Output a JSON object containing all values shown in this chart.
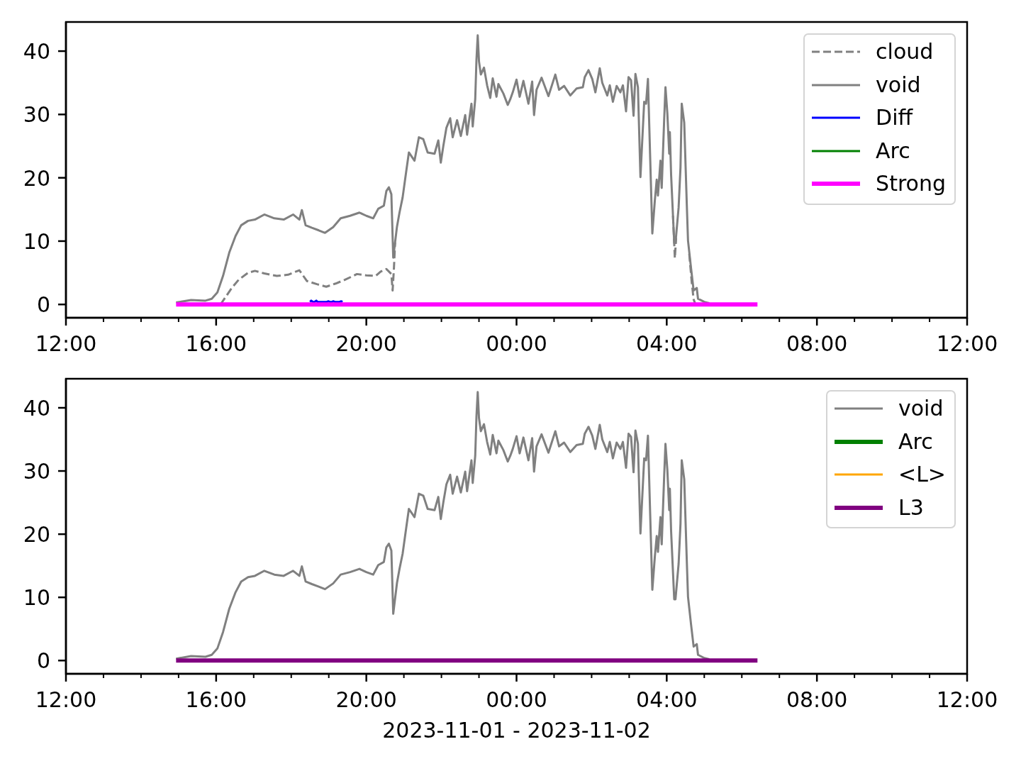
{
  "chart_data": [
    {
      "type": "line",
      "xlim": [
        "2023-11-01T12:00",
        "2023-11-02T12:00"
      ],
      "xticks": [
        {
          "value": "2023-11-01T12:00",
          "label": "12:00"
        },
        {
          "value": "2023-11-01T13:00",
          "label": null
        },
        {
          "value": "2023-11-01T14:00",
          "label": null
        },
        {
          "value": "2023-11-01T15:00",
          "label": null
        },
        {
          "value": "2023-11-01T16:00",
          "label": "16:00"
        },
        {
          "value": "2023-11-01T17:00",
          "label": null
        },
        {
          "value": "2023-11-01T18:00",
          "label": null
        },
        {
          "value": "2023-11-01T19:00",
          "label": null
        },
        {
          "value": "2023-11-01T20:00",
          "label": "20:00"
        },
        {
          "value": "2023-11-01T21:00",
          "label": null
        },
        {
          "value": "2023-11-01T22:00",
          "label": null
        },
        {
          "value": "2023-11-01T23:00",
          "label": null
        },
        {
          "value": "2023-11-02T00:00",
          "label": "00:00"
        },
        {
          "value": "2023-11-02T01:00",
          "label": null
        },
        {
          "value": "2023-11-02T02:00",
          "label": null
        },
        {
          "value": "2023-11-02T03:00",
          "label": null
        },
        {
          "value": "2023-11-02T04:00",
          "label": "04:00"
        },
        {
          "value": "2023-11-02T05:00",
          "label": null
        },
        {
          "value": "2023-11-02T06:00",
          "label": null
        },
        {
          "value": "2023-11-02T07:00",
          "label": null
        },
        {
          "value": "2023-11-02T08:00",
          "label": "08:00"
        },
        {
          "value": "2023-11-02T09:00",
          "label": null
        },
        {
          "value": "2023-11-02T10:00",
          "label": null
        },
        {
          "value": "2023-11-02T11:00",
          "label": null
        },
        {
          "value": "2023-11-02T12:00",
          "label": "12:00"
        }
      ],
      "ylim": [
        -2.1,
        44.6
      ],
      "yticks": [
        0,
        10,
        20,
        30,
        40
      ],
      "legend": "top right",
      "marker": "none",
      "series": [
        {
          "name": "cloud",
          "color": "#808080",
          "line_style": "dashed",
          "x": [
            "2023-11-01T16:07",
            "2023-11-01T16:25",
            "2023-11-01T16:36",
            "2023-11-01T16:51",
            "2023-11-01T17:02",
            "2023-11-01T17:17",
            "2023-11-01T17:37",
            "2023-11-01T17:55",
            "2023-11-01T18:13",
            "2023-11-01T18:25",
            "2023-11-01T18:41",
            "2023-11-01T18:56",
            "2023-11-01T19:11",
            "2023-11-01T19:26",
            "2023-11-01T19:45",
            "2023-11-01T20:00",
            "2023-11-01T20:15",
            "2023-11-01T20:23",
            "2023-11-01T20:32",
            "2023-11-01T20:40",
            "2023-11-01T20:42",
            "2023-11-01T20:44",
            "2023-11-01T20:46",
            "2023-11-01T21:00",
            "2023-11-02T04:10",
            "2023-11-02T04:13",
            "2023-11-02T04:15",
            "2023-11-02T04:25",
            "2023-11-02T04:36",
            "2023-11-02T04:40",
            "2023-11-02T04:43",
            "2023-11-02T04:46"
          ],
          "values": [
            0,
            2.6,
            3.9,
            5.0,
            5.3,
            4.9,
            4.5,
            4.7,
            5.4,
            3.7,
            3.2,
            2.8,
            3.3,
            3.9,
            4.8,
            4.6,
            4.5,
            5.2,
            5.6,
            4.8,
            2.2,
            5.5,
            9.8,
            null,
            14.0,
            7.3,
            10.5,
            null,
            8.0,
            3.5,
            0.8,
            0
          ]
        },
        {
          "name": "void",
          "color": "#808080",
          "x": [
            "2023-11-01T14:56",
            "2023-11-01T15:20",
            "2023-11-01T15:43",
            "2023-11-01T15:53",
            "2023-11-01T16:02",
            "2023-11-01T16:11",
            "2023-11-01T16:21",
            "2023-11-01T16:31",
            "2023-11-01T16:40",
            "2023-11-01T16:51",
            "2023-11-01T17:02",
            "2023-11-01T17:17",
            "2023-11-01T17:33",
            "2023-11-01T17:48",
            "2023-11-01T18:03",
            "2023-11-01T18:13",
            "2023-11-01T18:17",
            "2023-11-01T18:23",
            "2023-11-01T18:33",
            "2023-11-01T18:44",
            "2023-11-01T18:54",
            "2023-11-01T19:07",
            "2023-11-01T19:19",
            "2023-11-01T19:34",
            "2023-11-01T19:49",
            "2023-11-01T20:00",
            "2023-11-01T20:11",
            "2023-11-01T20:19",
            "2023-11-01T20:28",
            "2023-11-01T20:32",
            "2023-11-01T20:36",
            "2023-11-01T20:40",
            "2023-11-01T20:43",
            "2023-11-01T20:49",
            "2023-11-01T20:53",
            "2023-11-01T20:58",
            "2023-11-01T21:04",
            "2023-11-01T21:08",
            "2023-11-01T21:17",
            "2023-11-01T21:24",
            "2023-11-01T21:31",
            "2023-11-01T21:38",
            "2023-11-01T21:49",
            "2023-11-01T21:55",
            "2023-11-01T21:59",
            "2023-11-01T22:03",
            "2023-11-01T22:08",
            "2023-11-01T22:14",
            "2023-11-01T22:18",
            "2023-11-01T22:25",
            "2023-11-01T22:31",
            "2023-11-01T22:38",
            "2023-11-01T22:41",
            "2023-11-01T22:48",
            "2023-11-01T22:50",
            "2023-11-01T22:54",
            "2023-11-01T22:56",
            "2023-11-01T22:58",
            "2023-11-01T23:00",
            "2023-11-01T23:03",
            "2023-11-01T23:08",
            "2023-11-01T23:13",
            "2023-11-01T23:18",
            "2023-11-01T23:22",
            "2023-11-01T23:28",
            "2023-11-01T23:31",
            "2023-11-01T23:39",
            "2023-11-01T23:46",
            "2023-11-01T23:50",
            "2023-11-01T23:54",
            "2023-11-02T00:00",
            "2023-11-02T00:05",
            "2023-11-02T00:11",
            "2023-11-02T00:19",
            "2023-11-02T00:25",
            "2023-11-02T00:28",
            "2023-11-02T00:32",
            "2023-11-02T00:40",
            "2023-11-02T00:51",
            "2023-11-02T01:02",
            "2023-11-02T01:08",
            "2023-11-02T01:16",
            "2023-11-02T01:26",
            "2023-11-02T01:36",
            "2023-11-02T01:46",
            "2023-11-02T01:49",
            "2023-11-02T01:55",
            "2023-11-02T02:01",
            "2023-11-02T02:06",
            "2023-11-02T02:13",
            "2023-11-02T02:17",
            "2023-11-02T02:25",
            "2023-11-02T02:29",
            "2023-11-02T02:34",
            "2023-11-02T02:40",
            "2023-11-02T02:46",
            "2023-11-02T02:50",
            "2023-11-02T02:55",
            "2023-11-02T02:59",
            "2023-11-02T03:03",
            "2023-11-02T03:07",
            "2023-11-02T03:10",
            "2023-11-02T03:14",
            "2023-11-02T03:18",
            "2023-11-02T03:24",
            "2023-11-02T03:27",
            "2023-11-02T03:30",
            "2023-11-02T03:37",
            "2023-11-02T03:41",
            "2023-11-02T03:44",
            "2023-11-02T03:46",
            "2023-11-02T03:50",
            "2023-11-02T03:52",
            "2023-11-02T03:56",
            "2023-11-02T03:58",
            "2023-11-02T04:01",
            "2023-11-02T04:04",
            "2023-11-02T04:05",
            "2023-11-02T04:07",
            "2023-11-02T04:12",
            "2023-11-02T04:14",
            "2023-11-02T04:19",
            "2023-11-02T04:22",
            "2023-11-02T04:24",
            "2023-11-02T04:28",
            "2023-11-02T04:32",
            "2023-11-02T04:34",
            "2023-11-02T04:39",
            "2023-11-02T04:43",
            "2023-11-02T04:48",
            "2023-11-02T04:50",
            "2023-11-02T05:00",
            "2023-11-02T05:08"
          ],
          "values": [
            0.3,
            0.7,
            0.6,
            0.9,
            1.9,
            4.5,
            8.2,
            10.8,
            12.5,
            13.2,
            13.4,
            14.2,
            13.6,
            13.4,
            14.2,
            13.4,
            14.9,
            12.5,
            12.1,
            11.7,
            11.3,
            12.2,
            13.6,
            14.0,
            14.5,
            14.0,
            13.6,
            15.1,
            15.6,
            17.9,
            18.5,
            17.4,
            7.4,
            12.3,
            14.5,
            16.9,
            21.2,
            24.0,
            22.7,
            26.4,
            26.1,
            24.0,
            23.8,
            25.9,
            22.4,
            25.0,
            27.9,
            29.4,
            26.4,
            29.1,
            26.6,
            29.9,
            26.8,
            31.7,
            28.1,
            32.4,
            38.7,
            42.5,
            38.4,
            36.3,
            37.4,
            34.6,
            32.6,
            35.7,
            32.8,
            34.8,
            33.3,
            31.5,
            32.4,
            33.5,
            35.5,
            32.8,
            35.3,
            31.7,
            35.2,
            29.9,
            33.9,
            35.8,
            32.9,
            36.3,
            33.9,
            34.5,
            33.0,
            34.1,
            34.3,
            35.9,
            37.0,
            35.6,
            33.5,
            37.3,
            35.0,
            33.0,
            34.6,
            32.0,
            34.5,
            33.5,
            34.6,
            30.5,
            35.9,
            35.4,
            29.8,
            36.4,
            34.3,
            20.1,
            32.0,
            31.7,
            35.6,
            11.2,
            16.4,
            19.7,
            17.2,
            22.7,
            18.4,
            29.4,
            34.3,
            30.2,
            23.8,
            27.2,
            20.5,
            9.7,
            9.7,
            15.3,
            21.6,
            31.7,
            28.7,
            16.0,
            10.1,
            5.6,
            2.2,
            2.6,
            0.9,
            0.4,
            0.2
          ]
        },
        {
          "name": "Diff",
          "color": "#0000ff",
          "x": [
            "2023-11-01T18:30",
            "2023-11-01T18:32",
            "2023-11-01T18:35",
            "2023-11-01T18:37",
            "2023-11-01T18:40",
            "2023-11-01T18:42",
            "2023-11-01T18:57",
            "2023-11-01T18:59",
            "2023-11-01T19:02",
            "2023-11-01T19:05",
            "2023-11-01T19:07",
            "2023-11-01T19:10",
            "2023-11-01T19:14",
            "2023-11-01T19:17",
            "2023-11-01T19:20",
            "2023-11-01T19:22"
          ],
          "values": [
            0.4,
            0.6,
            0.4,
            0.4,
            0.6,
            0.4,
            0.4,
            0.5,
            0.4,
            0.4,
            0.5,
            0.4,
            0.4,
            0.4,
            0.5,
            0.4
          ]
        },
        {
          "name": "Arc",
          "color": "#008000"
        },
        {
          "name": "Strong",
          "color": "#ff00ff",
          "x": [
            "2023-11-01T14:56",
            "2023-11-02T06:25"
          ],
          "values": [
            0,
            0
          ]
        }
      ]
    },
    {
      "type": "line",
      "xlabel": "2023-11-01 - 2023-11-02",
      "xlim": [
        "2023-11-01T12:00",
        "2023-11-02T12:00"
      ],
      "xticks": [
        {
          "value": "2023-11-01T12:00",
          "label": "12:00"
        },
        {
          "value": "2023-11-01T13:00",
          "label": null
        },
        {
          "value": "2023-11-01T14:00",
          "label": null
        },
        {
          "value": "2023-11-01T15:00",
          "label": null
        },
        {
          "value": "2023-11-01T16:00",
          "label": "16:00"
        },
        {
          "value": "2023-11-01T17:00",
          "label": null
        },
        {
          "value": "2023-11-01T18:00",
          "label": null
        },
        {
          "value": "2023-11-01T19:00",
          "label": null
        },
        {
          "value": "2023-11-01T20:00",
          "label": "20:00"
        },
        {
          "value": "2023-11-01T21:00",
          "label": null
        },
        {
          "value": "2023-11-01T22:00",
          "label": null
        },
        {
          "value": "2023-11-01T23:00",
          "label": null
        },
        {
          "value": "2023-11-02T00:00",
          "label": "00:00"
        },
        {
          "value": "2023-11-02T01:00",
          "label": null
        },
        {
          "value": "2023-11-02T02:00",
          "label": null
        },
        {
          "value": "2023-11-02T03:00",
          "label": null
        },
        {
          "value": "2023-11-02T04:00",
          "label": "04:00"
        },
        {
          "value": "2023-11-02T05:00",
          "label": null
        },
        {
          "value": "2023-11-02T06:00",
          "label": null
        },
        {
          "value": "2023-11-02T07:00",
          "label": null
        },
        {
          "value": "2023-11-02T08:00",
          "label": "08:00"
        },
        {
          "value": "2023-11-02T09:00",
          "label": null
        },
        {
          "value": "2023-11-02T10:00",
          "label": null
        },
        {
          "value": "2023-11-02T11:00",
          "label": null
        },
        {
          "value": "2023-11-02T12:00",
          "label": "12:00"
        }
      ],
      "ylim": [
        -2.1,
        44.6
      ],
      "yticks": [
        0,
        10,
        20,
        30,
        40
      ],
      "legend": "top right",
      "marker": "none",
      "series": [
        {
          "name": "void",
          "color": "#808080",
          "x": [
            "2023-11-01T14:56",
            "2023-11-01T15:20",
            "2023-11-01T15:43",
            "2023-11-01T15:53",
            "2023-11-01T16:02",
            "2023-11-01T16:11",
            "2023-11-01T16:21",
            "2023-11-01T16:31",
            "2023-11-01T16:40",
            "2023-11-01T16:51",
            "2023-11-01T17:02",
            "2023-11-01T17:17",
            "2023-11-01T17:33",
            "2023-11-01T17:48",
            "2023-11-01T18:03",
            "2023-11-01T18:13",
            "2023-11-01T18:17",
            "2023-11-01T18:23",
            "2023-11-01T18:33",
            "2023-11-01T18:44",
            "2023-11-01T18:54",
            "2023-11-01T19:07",
            "2023-11-01T19:19",
            "2023-11-01T19:34",
            "2023-11-01T19:49",
            "2023-11-01T20:00",
            "2023-11-01T20:11",
            "2023-11-01T20:19",
            "2023-11-01T20:28",
            "2023-11-01T20:32",
            "2023-11-01T20:36",
            "2023-11-01T20:40",
            "2023-11-01T20:43",
            "2023-11-01T20:49",
            "2023-11-01T20:53",
            "2023-11-01T20:58",
            "2023-11-01T21:04",
            "2023-11-01T21:08",
            "2023-11-01T21:17",
            "2023-11-01T21:24",
            "2023-11-01T21:31",
            "2023-11-01T21:38",
            "2023-11-01T21:49",
            "2023-11-01T21:55",
            "2023-11-01T21:59",
            "2023-11-01T22:03",
            "2023-11-01T22:08",
            "2023-11-01T22:14",
            "2023-11-01T22:18",
            "2023-11-01T22:25",
            "2023-11-01T22:31",
            "2023-11-01T22:38",
            "2023-11-01T22:41",
            "2023-11-01T22:48",
            "2023-11-01T22:50",
            "2023-11-01T22:54",
            "2023-11-01T22:56",
            "2023-11-01T22:58",
            "2023-11-01T23:00",
            "2023-11-01T23:03",
            "2023-11-01T23:08",
            "2023-11-01T23:13",
            "2023-11-01T23:18",
            "2023-11-01T23:22",
            "2023-11-01T23:28",
            "2023-11-01T23:31",
            "2023-11-01T23:39",
            "2023-11-01T23:46",
            "2023-11-01T23:50",
            "2023-11-01T23:54",
            "2023-11-02T00:00",
            "2023-11-02T00:05",
            "2023-11-02T00:11",
            "2023-11-02T00:19",
            "2023-11-02T00:25",
            "2023-11-02T00:28",
            "2023-11-02T00:32",
            "2023-11-02T00:40",
            "2023-11-02T00:51",
            "2023-11-02T01:02",
            "2023-11-02T01:08",
            "2023-11-02T01:16",
            "2023-11-02T01:26",
            "2023-11-02T01:36",
            "2023-11-02T01:46",
            "2023-11-02T01:49",
            "2023-11-02T01:55",
            "2023-11-02T02:01",
            "2023-11-02T02:06",
            "2023-11-02T02:13",
            "2023-11-02T02:17",
            "2023-11-02T02:25",
            "2023-11-02T02:29",
            "2023-11-02T02:34",
            "2023-11-02T02:40",
            "2023-11-02T02:46",
            "2023-11-02T02:50",
            "2023-11-02T02:55",
            "2023-11-02T02:59",
            "2023-11-02T03:03",
            "2023-11-02T03:07",
            "2023-11-02T03:10",
            "2023-11-02T03:14",
            "2023-11-02T03:18",
            "2023-11-02T03:24",
            "2023-11-02T03:27",
            "2023-11-02T03:30",
            "2023-11-02T03:37",
            "2023-11-02T03:41",
            "2023-11-02T03:44",
            "2023-11-02T03:46",
            "2023-11-02T03:50",
            "2023-11-02T03:52",
            "2023-11-02T03:56",
            "2023-11-02T03:58",
            "2023-11-02T04:01",
            "2023-11-02T04:04",
            "2023-11-02T04:05",
            "2023-11-02T04:07",
            "2023-11-02T04:12",
            "2023-11-02T04:14",
            "2023-11-02T04:19",
            "2023-11-02T04:22",
            "2023-11-02T04:24",
            "2023-11-02T04:28",
            "2023-11-02T04:32",
            "2023-11-02T04:34",
            "2023-11-02T04:39",
            "2023-11-02T04:43",
            "2023-11-02T04:48",
            "2023-11-02T04:50",
            "2023-11-02T05:00",
            "2023-11-02T05:08"
          ],
          "values": [
            0.3,
            0.7,
            0.6,
            0.9,
            1.9,
            4.5,
            8.2,
            10.8,
            12.5,
            13.2,
            13.4,
            14.2,
            13.6,
            13.4,
            14.2,
            13.4,
            14.9,
            12.5,
            12.1,
            11.7,
            11.3,
            12.2,
            13.6,
            14.0,
            14.5,
            14.0,
            13.6,
            15.1,
            15.6,
            17.9,
            18.5,
            17.4,
            7.4,
            12.3,
            14.5,
            16.9,
            21.2,
            24.0,
            22.7,
            26.4,
            26.1,
            24.0,
            23.8,
            25.9,
            22.4,
            25.0,
            27.9,
            29.4,
            26.4,
            29.1,
            26.6,
            29.9,
            26.8,
            31.7,
            28.1,
            32.4,
            38.7,
            42.5,
            38.4,
            36.3,
            37.4,
            34.6,
            32.6,
            35.7,
            32.8,
            34.8,
            33.3,
            31.5,
            32.4,
            33.5,
            35.5,
            32.8,
            35.3,
            31.7,
            35.2,
            29.9,
            33.9,
            35.8,
            32.9,
            36.3,
            33.9,
            34.5,
            33.0,
            34.1,
            34.3,
            35.9,
            37.0,
            35.6,
            33.5,
            37.3,
            35.0,
            33.0,
            34.6,
            32.0,
            34.5,
            33.5,
            34.6,
            30.5,
            35.9,
            35.4,
            29.8,
            36.4,
            34.3,
            20.1,
            32.0,
            31.7,
            35.6,
            11.2,
            16.4,
            19.7,
            17.2,
            22.7,
            18.4,
            29.4,
            34.3,
            30.2,
            23.8,
            27.2,
            20.5,
            9.7,
            9.7,
            15.3,
            21.6,
            31.7,
            28.7,
            16.0,
            10.1,
            5.6,
            2.2,
            2.6,
            0.9,
            0.4,
            0.2
          ]
        },
        {
          "name": "Arc",
          "color": "#008000"
        },
        {
          "name": "<L>",
          "color": "#ffa500"
        },
        {
          "name": "L3",
          "color": "#800080",
          "x": [
            "2023-11-01T14:56",
            "2023-11-02T06:25"
          ],
          "values": [
            0,
            0
          ]
        }
      ]
    }
  ]
}
